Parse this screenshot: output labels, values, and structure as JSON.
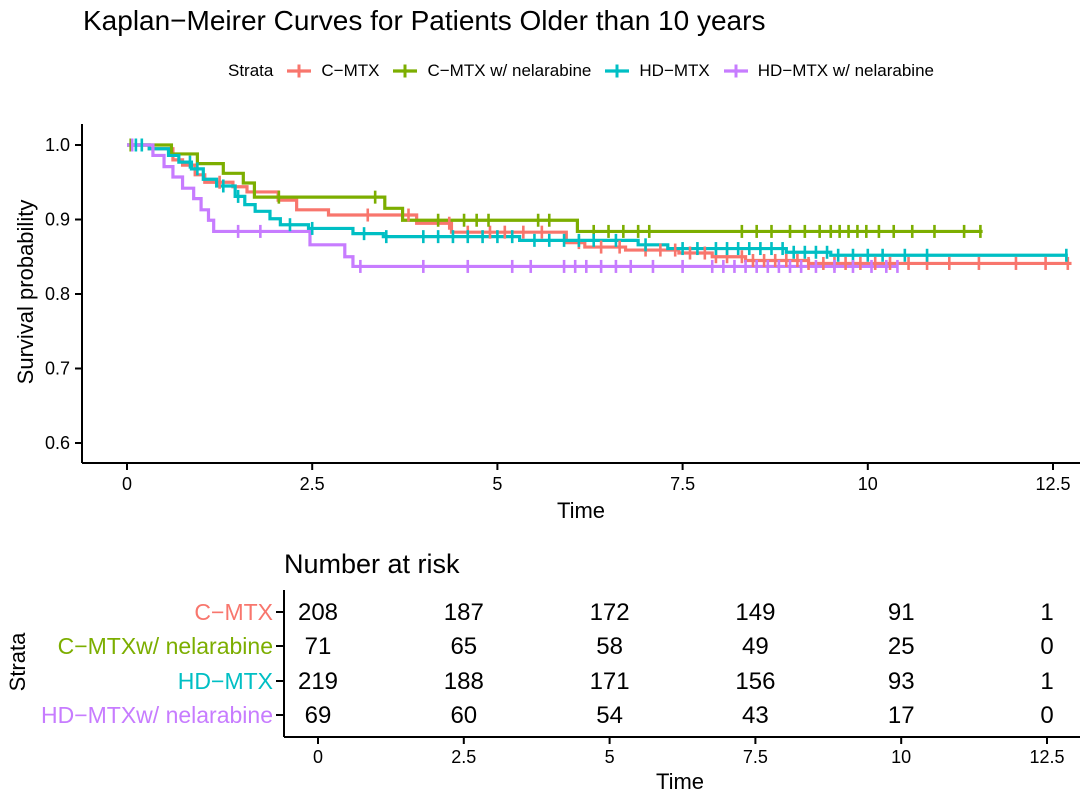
{
  "title": "Kaplan−Meirer Curves for Patients Older than 10 years",
  "legend": {
    "title": "Strata"
  },
  "main_plot": {
    "x_label": "Time",
    "y_label": "Survival probability",
    "x_ticks": [
      "0",
      "2.5",
      "5",
      "7.5",
      "10",
      "12.5"
    ],
    "x_tick_values": [
      0,
      2.5,
      5,
      7.5,
      10,
      12.5
    ],
    "y_ticks": [
      "1.0",
      "0.9",
      "0.8",
      "0.7",
      "0.6"
    ],
    "y_tick_values": [
      1.0,
      0.9,
      0.8,
      0.7,
      0.6
    ]
  },
  "risk_table": {
    "title": "Number at risk",
    "y_axis_label": "Strata",
    "x_axis_label": "Time",
    "x_ticks": [
      "0",
      "2.5",
      "5",
      "7.5",
      "10",
      "12.5"
    ],
    "times": [
      0,
      2.5,
      5,
      7.5,
      10,
      12.5
    ],
    "rows": [
      {
        "label": "C−MTX",
        "color": "#F8766D",
        "counts": [
          208,
          187,
          172,
          149,
          91,
          1
        ]
      },
      {
        "label": "C−MTXw/ nelarabine",
        "color": "#7CAE00",
        "counts": [
          71,
          65,
          58,
          49,
          25,
          0
        ]
      },
      {
        "label": "HD−MTX",
        "color": "#00BFC4",
        "counts": [
          219,
          188,
          171,
          156,
          93,
          1
        ]
      },
      {
        "label": "HD−MTXw/ nelarabine",
        "color": "#C77CFF",
        "counts": [
          69,
          60,
          54,
          43,
          17,
          0
        ]
      }
    ]
  },
  "chart_data": {
    "type": "line",
    "subtype": "kaplan-meier-step",
    "title": "Kaplan−Meirer Curves for Patients Older than 10 years",
    "xlabel": "Time",
    "ylabel": "Survival probability",
    "xlim": [
      0,
      12.9
    ],
    "ylim": [
      0.6,
      1.0
    ],
    "grid": false,
    "legend_position": "top",
    "series": [
      {
        "id": "c-mtx",
        "name": "C−MTX",
        "color": "#F8766D",
        "at_risk": [
          208,
          187,
          172,
          149,
          91,
          1
        ],
        "end_time": 12.75,
        "steps": [
          [
            0,
            1.0
          ],
          [
            0.3,
            0.995
          ],
          [
            0.62,
            0.98
          ],
          [
            0.75,
            0.973
          ],
          [
            0.92,
            0.96
          ],
          [
            1.05,
            0.95
          ],
          [
            1.43,
            0.944
          ],
          [
            1.62,
            0.937
          ],
          [
            2.04,
            0.926
          ],
          [
            2.29,
            0.913
          ],
          [
            2.72,
            0.906
          ],
          [
            3.91,
            0.895
          ],
          [
            4.38,
            0.883
          ],
          [
            5.93,
            0.869
          ],
          [
            6.18,
            0.863
          ],
          [
            6.73,
            0.859
          ],
          [
            7.45,
            0.855
          ],
          [
            7.9,
            0.85
          ],
          [
            8.35,
            0.845
          ],
          [
            9.2,
            0.841
          ]
        ],
        "censor_times": [
          1.25,
          3.25,
          3.8,
          4.35,
          4.6,
          4.9,
          5.1,
          5.35,
          5.6,
          6.1,
          6.4,
          6.65,
          7.0,
          7.2,
          7.4,
          7.6,
          7.8,
          7.95,
          8.1,
          8.3,
          8.45,
          8.6,
          8.75,
          8.9,
          9.05,
          9.2,
          9.4,
          9.55,
          9.7,
          9.9,
          10.1,
          10.3,
          10.55,
          10.8,
          11.1,
          11.5,
          12.0,
          12.4,
          12.7
        ]
      },
      {
        "id": "c-mtx-nelarabine",
        "name": "C−MTX w/ nelarabine",
        "color": "#7CAE00",
        "at_risk": [
          71,
          65,
          58,
          49,
          25,
          0
        ],
        "end_time": 11.55,
        "steps": [
          [
            0,
            1.0
          ],
          [
            0.6,
            0.988
          ],
          [
            0.95,
            0.975
          ],
          [
            1.3,
            0.962
          ],
          [
            1.57,
            0.949
          ],
          [
            1.72,
            0.93
          ],
          [
            3.48,
            0.915
          ],
          [
            3.72,
            0.899
          ],
          [
            6.08,
            0.884
          ]
        ],
        "censor_times": [
          0.05,
          2.05,
          3.35,
          4.2,
          4.55,
          4.72,
          4.88,
          5.55,
          5.7,
          6.3,
          6.5,
          6.7,
          6.9,
          7.05,
          8.3,
          8.5,
          8.7,
          8.95,
          9.15,
          9.35,
          9.5,
          9.62,
          9.74,
          9.86,
          9.98,
          10.15,
          10.35,
          10.6,
          10.9,
          11.3,
          11.52
        ]
      },
      {
        "id": "hd-mtx",
        "name": "HD−MTX",
        "color": "#00BFC4",
        "at_risk": [
          219,
          188,
          171,
          156,
          93,
          1
        ],
        "end_time": 12.7,
        "steps": [
          [
            0,
            1.0
          ],
          [
            0.3,
            0.995
          ],
          [
            0.56,
            0.986
          ],
          [
            0.7,
            0.977
          ],
          [
            0.87,
            0.968
          ],
          [
            1.03,
            0.954
          ],
          [
            1.21,
            0.945
          ],
          [
            1.46,
            0.931
          ],
          [
            1.59,
            0.92
          ],
          [
            1.73,
            0.911
          ],
          [
            1.93,
            0.901
          ],
          [
            2.07,
            0.893
          ],
          [
            2.45,
            0.888
          ],
          [
            3.05,
            0.881
          ],
          [
            3.46,
            0.877
          ],
          [
            5.3,
            0.872
          ],
          [
            6.9,
            0.866
          ],
          [
            7.3,
            0.861
          ],
          [
            8.9,
            0.856
          ],
          [
            9.5,
            0.852
          ]
        ],
        "censor_times": [
          0.12,
          0.2,
          0.85,
          0.95,
          1.3,
          1.5,
          2.2,
          2.5,
          3.2,
          3.5,
          4.0,
          4.2,
          4.4,
          4.6,
          4.8,
          5.0,
          5.2,
          5.5,
          5.7,
          5.9,
          6.1,
          6.3,
          6.6,
          7.0,
          7.5,
          7.7,
          7.95,
          8.1,
          8.25,
          8.4,
          8.55,
          8.7,
          8.85,
          9.0,
          9.15,
          9.3,
          9.45,
          9.6,
          9.8,
          10.0,
          10.2,
          10.5,
          10.8,
          12.68
        ]
      },
      {
        "id": "hd-mtx-nelarabine",
        "name": "HD−MTX w/ nelarabine",
        "color": "#C77CFF",
        "at_risk": [
          69,
          60,
          54,
          43,
          17,
          0
        ],
        "end_time": 10.4,
        "steps": [
          [
            0,
            1.0
          ],
          [
            0.35,
            0.986
          ],
          [
            0.5,
            0.971
          ],
          [
            0.62,
            0.957
          ],
          [
            0.75,
            0.942
          ],
          [
            0.9,
            0.928
          ],
          [
            1.0,
            0.913
          ],
          [
            1.1,
            0.899
          ],
          [
            1.17,
            0.884
          ],
          [
            2.47,
            0.866
          ],
          [
            2.94,
            0.85
          ],
          [
            3.05,
            0.837
          ]
        ],
        "censor_times": [
          0.07,
          1.5,
          1.8,
          3.15,
          4.0,
          4.6,
          5.2,
          5.45,
          5.9,
          6.05,
          6.2,
          6.4,
          6.6,
          6.8,
          7.1,
          7.5,
          7.9,
          8.05,
          8.2,
          8.35,
          8.5,
          8.65,
          8.8,
          8.95,
          9.1,
          9.3,
          9.55,
          9.8,
          10.05,
          10.25,
          10.4
        ]
      }
    ],
    "risk_table_times": [
      0,
      2.5,
      5,
      7.5,
      10,
      12.5
    ]
  }
}
